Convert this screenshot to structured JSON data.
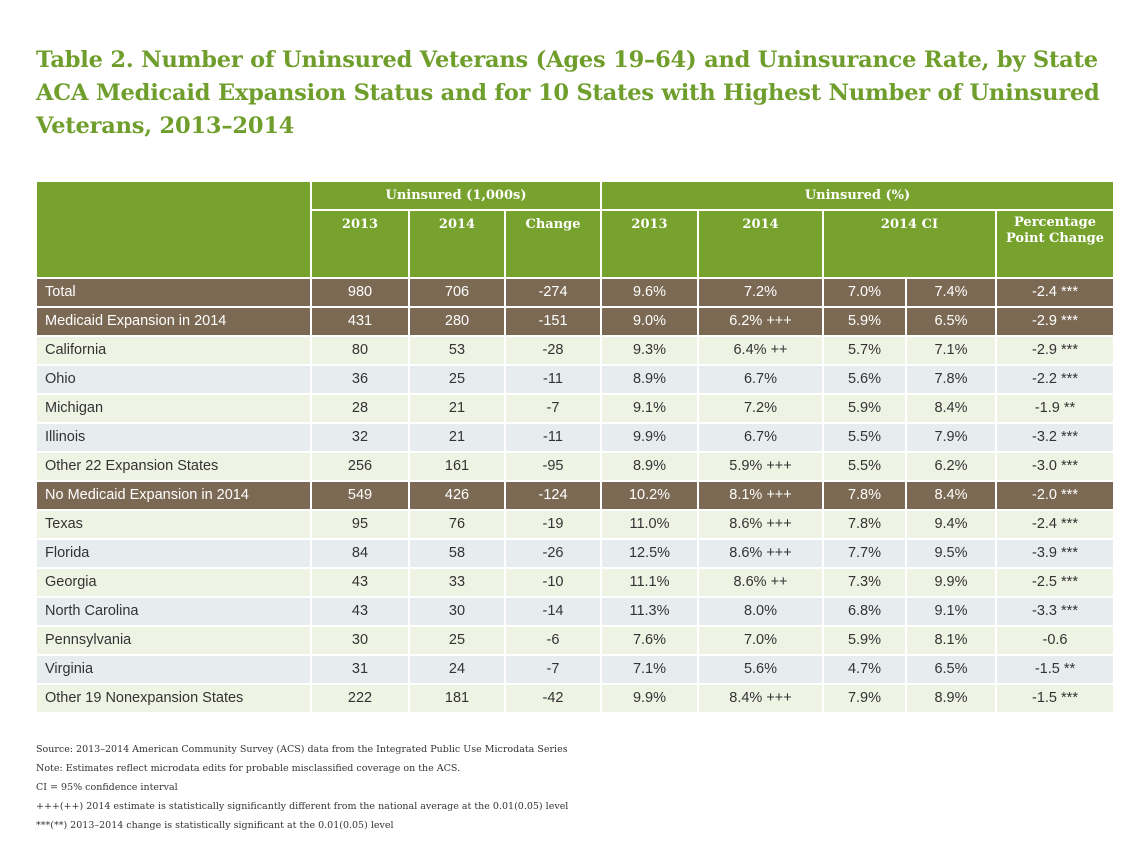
{
  "title": "Table 2. Number of Uninsured Veterans (Ages 19–64) and Uninsurance Rate, by State ACA Medicaid Expansion Status and for 10 States with Highest Number of Uninsured Veterans, 2013–2014",
  "colors": {
    "header_green": "#76a22d",
    "group_brown": "#7b6954",
    "row_green": "#eef3e3",
    "row_blue": "#e7ecef",
    "title_green": "#6f9e2c"
  },
  "header": {
    "group1": "Uninsured (1,000s)",
    "group2": "Uninsured (%)",
    "cols": [
      "2013",
      "2014",
      "Change",
      "2013",
      "2014",
      "2014 CI",
      "Percentage Point Change"
    ]
  },
  "rows": [
    {
      "style": "brown",
      "cells": [
        "Total",
        "980",
        "706",
        "-274",
        "9.6%",
        "7.2%",
        "7.0%",
        "7.4%",
        "-2.4 ***"
      ]
    },
    {
      "style": "brown",
      "cells": [
        "Medicaid Expansion in 2014",
        "431",
        "280",
        "-151",
        "9.0%",
        "6.2% +++",
        "5.9%",
        "6.5%",
        "-2.9 ***"
      ]
    },
    {
      "style": "green",
      "cells": [
        "California",
        "80",
        "53",
        "-28",
        "9.3%",
        "6.4% ++",
        "5.7%",
        "7.1%",
        "-2.9 ***"
      ]
    },
    {
      "style": "blue",
      "cells": [
        "Ohio",
        "36",
        "25",
        "-11",
        "8.9%",
        "6.7%",
        "5.6%",
        "7.8%",
        "-2.2 ***"
      ]
    },
    {
      "style": "green",
      "cells": [
        "Michigan",
        "28",
        "21",
        "-7",
        "9.1%",
        "7.2%",
        "5.9%",
        "8.4%",
        "-1.9 **"
      ]
    },
    {
      "style": "blue",
      "cells": [
        "Illinois",
        "32",
        "21",
        "-11",
        "9.9%",
        "6.7%",
        "5.5%",
        "7.9%",
        "-3.2 ***"
      ]
    },
    {
      "style": "green",
      "cells": [
        "Other 22 Expansion States",
        "256",
        "161",
        "-95",
        "8.9%",
        "5.9% +++",
        "5.5%",
        "6.2%",
        "-3.0 ***"
      ]
    },
    {
      "style": "brown",
      "cells": [
        "No Medicaid Expansion in 2014",
        "549",
        "426",
        "-124",
        "10.2%",
        "8.1% +++",
        "7.8%",
        "8.4%",
        "-2.0 ***"
      ]
    },
    {
      "style": "green",
      "cells": [
        "Texas",
        "95",
        "76",
        "-19",
        "11.0%",
        "8.6% +++",
        "7.8%",
        "9.4%",
        "-2.4 ***"
      ]
    },
    {
      "style": "blue",
      "cells": [
        "Florida",
        "84",
        "58",
        "-26",
        "12.5%",
        "8.6% +++",
        "7.7%",
        "9.5%",
        "-3.9 ***"
      ]
    },
    {
      "style": "green",
      "cells": [
        "Georgia",
        "43",
        "33",
        "-10",
        "11.1%",
        "8.6% ++",
        "7.3%",
        "9.9%",
        "-2.5 ***"
      ]
    },
    {
      "style": "blue",
      "cells": [
        "North Carolina",
        "43",
        "30",
        "-14",
        "11.3%",
        "8.0%",
        "6.8%",
        "9.1%",
        "-3.3 ***"
      ]
    },
    {
      "style": "green",
      "cells": [
        "Pennsylvania",
        "30",
        "25",
        "-6",
        "7.6%",
        "7.0%",
        "5.9%",
        "8.1%",
        "-0.6"
      ]
    },
    {
      "style": "blue",
      "cells": [
        "Virginia",
        "31",
        "24",
        "-7",
        "7.1%",
        "5.6%",
        "4.7%",
        "6.5%",
        "-1.5 **"
      ]
    },
    {
      "style": "green",
      "cells": [
        "Other 19 Nonexpansion States",
        "222",
        "181",
        "-42",
        "9.9%",
        "8.4% +++",
        "7.9%",
        "8.9%",
        "-1.5 ***"
      ]
    }
  ],
  "notes": [
    "Source: 2013–2014 American Community Survey (ACS) data from the Integrated Public Use Microdata Series",
    "Note: Estimates reflect microdata edits for probable misclassified coverage on the ACS.",
    "CI = 95% confidence interval",
    "+++(++) 2014 estimate is statistically significantly different from the national average at the 0.01(0.05) level",
    "***(**) 2013–2014 change is statistically significant at the 0.01(0.05) level"
  ]
}
